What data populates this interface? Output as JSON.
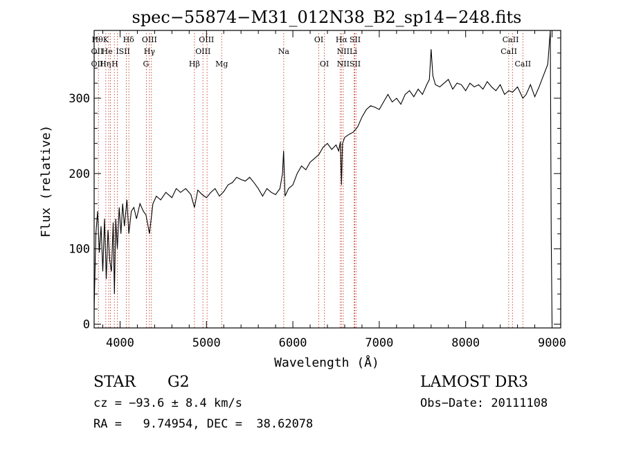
{
  "chart_data": {
    "type": "line",
    "title": "spec−55874−M31_012N38_B2_sp14−248.fits",
    "xlabel": "Wavelength (Å)",
    "ylabel": "Flux (relative)",
    "xlim": [
      3700,
      9100
    ],
    "ylim": [
      -5,
      390
    ],
    "xticks": [
      4000,
      5000,
      6000,
      7000,
      8000,
      9000
    ],
    "xtick_labels": [
      "4000",
      "5000",
      "6000",
      "7000",
      "8000",
      "9000"
    ],
    "yticks": [
      0,
      100,
      200,
      300
    ],
    "ytick_labels": [
      "0",
      "100",
      "200",
      "300"
    ],
    "series": [
      {
        "name": "spectrum",
        "color": "#000000",
        "x": [
          3700,
          3720,
          3740,
          3760,
          3780,
          3800,
          3820,
          3840,
          3860,
          3880,
          3900,
          3920,
          3935,
          3950,
          3968,
          3990,
          4010,
          4030,
          4050,
          4080,
          4101,
          4130,
          4160,
          4190,
          4230,
          4270,
          4300,
          4340,
          4380,
          4420,
          4470,
          4530,
          4600,
          4650,
          4700,
          4760,
          4820,
          4861,
          4900,
          4950,
          5000,
          5050,
          5100,
          5150,
          5200,
          5250,
          5300,
          5350,
          5400,
          5450,
          5500,
          5550,
          5600,
          5650,
          5700,
          5750,
          5800,
          5850,
          5880,
          5893,
          5910,
          5950,
          6000,
          6050,
          6100,
          6150,
          6200,
          6250,
          6300,
          6350,
          6400,
          6450,
          6500,
          6530,
          6550,
          6563,
          6575,
          6600,
          6650,
          6700,
          6750,
          6800,
          6850,
          6900,
          6950,
          7000,
          7050,
          7100,
          7150,
          7200,
          7250,
          7300,
          7350,
          7400,
          7450,
          7500,
          7550,
          7580,
          7600,
          7620,
          7650,
          7700,
          7750,
          7800,
          7850,
          7900,
          7950,
          8000,
          8050,
          8100,
          8150,
          8200,
          8250,
          8300,
          8350,
          8400,
          8450,
          8498,
          8542,
          8600,
          8662,
          8700,
          8750,
          8800,
          8850,
          8900,
          8950,
          8980,
          8990,
          9000
        ],
        "y": [
          20,
          120,
          150,
          95,
          130,
          70,
          140,
          60,
          125,
          85,
          70,
          135,
          40,
          140,
          100,
          155,
          120,
          160,
          130,
          165,
          120,
          150,
          155,
          140,
          160,
          150,
          145,
          120,
          160,
          170,
          165,
          175,
          168,
          180,
          175,
          180,
          172,
          155,
          178,
          172,
          168,
          175,
          180,
          170,
          176,
          185,
          188,
          195,
          192,
          190,
          195,
          188,
          180,
          170,
          180,
          175,
          172,
          180,
          200,
          230,
          170,
          180,
          185,
          200,
          210,
          205,
          215,
          220,
          225,
          235,
          240,
          232,
          238,
          230,
          242,
          185,
          240,
          248,
          252,
          255,
          262,
          275,
          285,
          290,
          288,
          285,
          295,
          305,
          295,
          300,
          292,
          305,
          310,
          302,
          312,
          305,
          318,
          325,
          365,
          330,
          318,
          315,
          320,
          325,
          312,
          320,
          318,
          310,
          320,
          315,
          318,
          312,
          322,
          315,
          310,
          318,
          305,
          310,
          308,
          315,
          300,
          305,
          318,
          302,
          315,
          330,
          345,
          390,
          120,
          0
        ]
      }
    ],
    "lines": [
      {
        "x": 3750,
        "labels": [
          "Hθ",
          "OII",
          "OII"
        ]
      },
      {
        "x": 3835,
        "labels": [
          "Hθ"
        ]
      },
      {
        "x": 3869,
        "labels": [
          "OII"
        ]
      },
      {
        "x": 3889,
        "labels": [
          "He",
          "Hη"
        ]
      },
      {
        "x": 3934,
        "labels": [
          "K"
        ]
      },
      {
        "x": 3968,
        "labels": [
          "H",
          "He"
        ]
      },
      {
        "x": 4072,
        "labels": [
          "SII"
        ]
      },
      {
        "x": 4102,
        "labels": [
          "Hδ"
        ]
      },
      {
        "x": 4304,
        "labels": [
          "G"
        ]
      },
      {
        "x": 4340,
        "labels": [
          "Hγ"
        ]
      },
      {
        "x": 4363,
        "labels": [
          "OIII"
        ]
      },
      {
        "x": 4861,
        "labels": [
          "Hβ"
        ]
      },
      {
        "x": 4959,
        "labels": [
          "OIII"
        ]
      },
      {
        "x": 5007,
        "labels": [
          "OIII"
        ]
      },
      {
        "x": 5176,
        "labels": [
          "Mg"
        ]
      },
      {
        "x": 5894,
        "labels": [
          "Na"
        ]
      },
      {
        "x": 6300,
        "labels": [
          "OI"
        ]
      },
      {
        "x": 6364,
        "labels": [
          "OI"
        ]
      },
      {
        "x": 6548,
        "labels": [
          "NII"
        ]
      },
      {
        "x": 6563,
        "labels": [
          "Hα"
        ]
      },
      {
        "x": 6583,
        "labels": [
          "NII"
        ]
      },
      {
        "x": 6708,
        "labels": [
          "Li"
        ]
      },
      {
        "x": 6716,
        "labels": [
          "SII"
        ]
      },
      {
        "x": 6731,
        "labels": [
          "SII"
        ]
      },
      {
        "x": 8498,
        "labels": [
          "CaII"
        ]
      },
      {
        "x": 8542,
        "labels": [
          "CaII"
        ]
      },
      {
        "x": 8662,
        "labels": [
          "CaII"
        ]
      }
    ],
    "line_label_rows": [
      {
        "x": 3770,
        "row": 0,
        "text": "HθK"
      },
      {
        "x": 4098,
        "row": 0,
        "text": "Hδ"
      },
      {
        "x": 4340,
        "row": 0,
        "text": "OIII"
      },
      {
        "x": 5000,
        "row": 0,
        "text": "OIII"
      },
      {
        "x": 6300,
        "row": 0,
        "text": "OI"
      },
      {
        "x": 6563,
        "row": 0,
        "text": "Hα"
      },
      {
        "x": 6720,
        "row": 0,
        "text": "SII"
      },
      {
        "x": 8520,
        "row": 0,
        "text": "CaII"
      },
      {
        "x": 3735,
        "row": 1,
        "text": "OII"
      },
      {
        "x": 3850,
        "row": 1,
        "text": "He"
      },
      {
        "x": 3970,
        "row": 1,
        "text": "I"
      },
      {
        "x": 4050,
        "row": 1,
        "text": "SII"
      },
      {
        "x": 4340,
        "row": 1,
        "text": "Hγ"
      },
      {
        "x": 4960,
        "row": 1,
        "text": "OIII"
      },
      {
        "x": 5894,
        "row": 1,
        "text": "Na"
      },
      {
        "x": 6583,
        "row": 1,
        "text": "NII"
      },
      {
        "x": 6700,
        "row": 1,
        "text": "Li"
      },
      {
        "x": 8500,
        "row": 1,
        "text": "CaII"
      },
      {
        "x": 3735,
        "row": 2,
        "text": "OII"
      },
      {
        "x": 3830,
        "row": 2,
        "text": "Hη"
      },
      {
        "x": 3940,
        "row": 2,
        "text": "H"
      },
      {
        "x": 4300,
        "row": 2,
        "text": "G"
      },
      {
        "x": 4861,
        "row": 2,
        "text": "Hβ"
      },
      {
        "x": 5176,
        "row": 2,
        "text": "Mg"
      },
      {
        "x": 6364,
        "row": 2,
        "text": "OI"
      },
      {
        "x": 6583,
        "row": 2,
        "text": "NII"
      },
      {
        "x": 6720,
        "row": 2,
        "text": "SII"
      },
      {
        "x": 8662,
        "row": 2,
        "text": "CaII"
      }
    ],
    "line_color": "#c0392b"
  },
  "info": {
    "class_label": "STAR",
    "subclass_label": "G2",
    "survey_label": "LAMOST DR3",
    "redshift_text": "cz = −93.6 ± 8.4 km/s",
    "obs_date_text": "Obs−Date: 20111108",
    "coords_text": "RA =   9.74954, DEC =  38.62078"
  }
}
